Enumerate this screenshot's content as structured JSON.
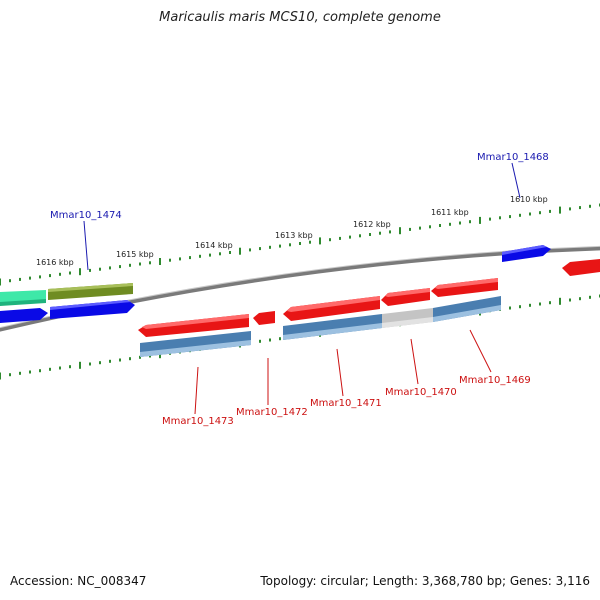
{
  "title": "Maricaulis maris MCS10, complete genome",
  "footer": {
    "accession": "Accession: NC_008347",
    "summary": "Topology: circular; Length: 3,368,780 bp; Genes: 3,116"
  },
  "colors": {
    "backbone": "#777777",
    "tick": "#2f8a2f",
    "label_forward": "#1a1ab0",
    "label_reverse": "#cc1111",
    "gene_red": "#e81515",
    "gene_blue": "#0a0ae6",
    "feature_steel": "#4a7eb0",
    "feature_grey": "#c4c4c4",
    "feature_teal": "#3ee8a8",
    "feature_olive": "#6f8c22"
  },
  "scale": {
    "tick_labels": [
      "1616 kbp",
      "1615 kbp",
      "1614 kbp",
      "1613 kbp",
      "1612 kbp",
      "1611 kbp",
      "1610 kbp"
    ]
  },
  "gene_labels": [
    {
      "id": "Mmar10_1474",
      "strand": "forward"
    },
    {
      "id": "Mmar10_1468",
      "strand": "forward"
    },
    {
      "id": "Mmar10_1473",
      "strand": "reverse"
    },
    {
      "id": "Mmar10_1472",
      "strand": "reverse"
    },
    {
      "id": "Mmar10_1471",
      "strand": "reverse"
    },
    {
      "id": "Mmar10_1470",
      "strand": "reverse"
    },
    {
      "id": "Mmar10_1469",
      "strand": "reverse"
    }
  ]
}
